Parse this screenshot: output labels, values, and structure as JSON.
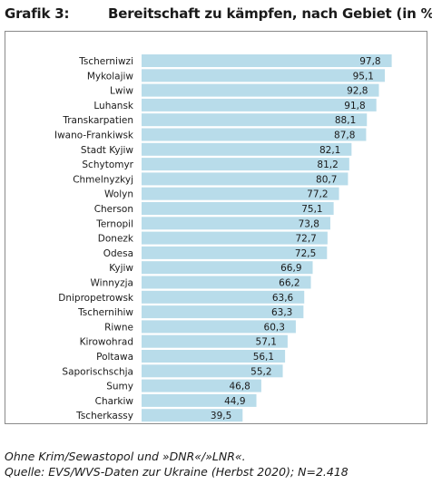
{
  "header": {
    "label": "Grafik 3:",
    "title": "Bereitschaft zu kämpfen, nach Gebiet (in %)"
  },
  "footer": {
    "note": "Ohne Krim/Sewastopol und »DNR«/»LNR«.",
    "source": "Quelle: EVS/WVS-Daten zur Ukraine (Herbst 2020); N=2.418"
  },
  "chart_data": {
    "type": "bar",
    "orientation": "horizontal",
    "categories": [
      "Tscherniwzi",
      "Mykolajiw",
      "Lwiw",
      "Luhansk",
      "Transkarpatien",
      "Iwano-Frankiwsk",
      "Stadt Kyjiw",
      "Schytomyr",
      "Chmelnyzkyj",
      "Wolyn",
      "Cherson",
      "Ternopil",
      "Donezk",
      "Odesa",
      "Kyjiw",
      "Winnyzja",
      "Dnipropetrowsk",
      "Tschernihiw",
      "Riwne",
      "Kirowohrad",
      "Poltawa",
      "Saporischschja",
      "Sumy",
      "Charkiw",
      "Tscherkassy"
    ],
    "values": [
      97.8,
      95.1,
      92.8,
      91.8,
      88.1,
      87.8,
      82.1,
      81.2,
      80.7,
      77.2,
      75.1,
      73.8,
      72.7,
      72.5,
      66.9,
      66.2,
      63.6,
      63.3,
      60.3,
      57.1,
      56.1,
      55.2,
      46.8,
      44.9,
      39.5
    ],
    "value_labels": [
      "97,8",
      "95,1",
      "92,8",
      "91,8",
      "88,1",
      "87,8",
      "82,1",
      "81,2",
      "80,7",
      "77,2",
      "75,1",
      "73,8",
      "72,7",
      "72,5",
      "66,9",
      "66,2",
      "63,6",
      "63,3",
      "60,3",
      "57,1",
      "56,1",
      "55,2",
      "46,8",
      "44,9",
      "39,5"
    ],
    "xlim": [
      0,
      100
    ],
    "grid": false,
    "legend": "none",
    "colors": {
      "bar": "#b8dcea",
      "text": "#1a1a1a",
      "frame": "#8a8a8a"
    }
  }
}
